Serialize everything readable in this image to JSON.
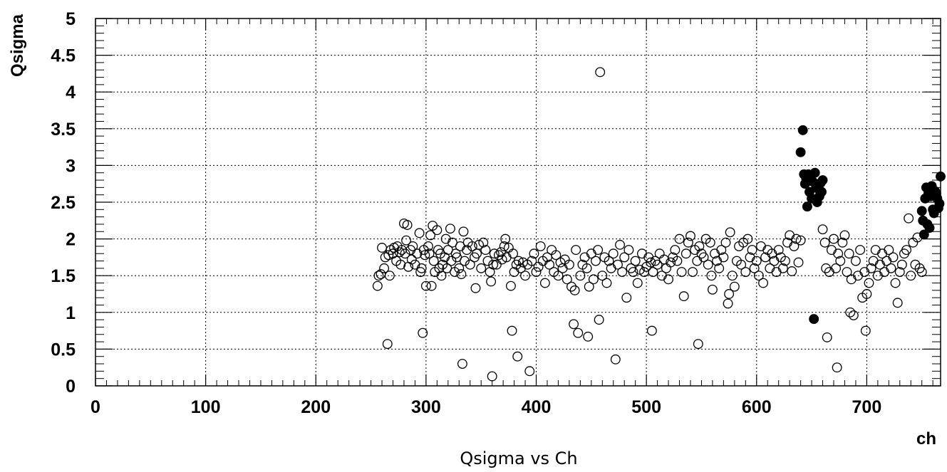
{
  "chart_data": {
    "type": "scatter",
    "caption": "Qsigma vs Ch",
    "xlabel": "ch",
    "ylabel": "Qsigma",
    "xlim": [
      0,
      767
    ],
    "ylim": [
      0,
      5
    ],
    "x_ticks": [
      0,
      100,
      200,
      300,
      400,
      500,
      600,
      700
    ],
    "x_tick_labels": [
      "0",
      "100",
      "200",
      "300",
      "400",
      "500",
      "600",
      "700"
    ],
    "y_ticks": [
      0,
      0.5,
      1,
      1.5,
      2,
      2.5,
      3,
      3.5,
      4,
      4.5,
      5
    ],
    "y_tick_labels": [
      "0",
      "0.5",
      "1",
      "1.5",
      "2",
      "2.5",
      "3",
      "3.5",
      "4",
      "4.5",
      "5"
    ],
    "grid": true,
    "series": [
      {
        "marker": "open-circle",
        "points": [
          [
            256,
            1.36
          ],
          [
            257,
            1.5
          ],
          [
            259,
            1.52
          ],
          [
            260,
            1.88
          ],
          [
            262,
            1.6
          ],
          [
            263,
            1.75
          ],
          [
            265,
            0.57
          ],
          [
            266,
            1.78
          ],
          [
            267,
            1.5
          ],
          [
            268,
            1.85
          ],
          [
            270,
            1.8
          ],
          [
            271,
            1.88
          ],
          [
            273,
            1.7
          ],
          [
            274,
            1.9
          ],
          [
            276,
            1.82
          ],
          [
            277,
            1.65
          ],
          [
            278,
            1.85
          ],
          [
            280,
            2.21
          ],
          [
            281,
            1.8
          ],
          [
            282,
            1.98
          ],
          [
            283,
            2.19
          ],
          [
            284,
            1.62
          ],
          [
            286,
            1.85
          ],
          [
            287,
            1.72
          ],
          [
            288,
            1.9
          ],
          [
            290,
            1.65
          ],
          [
            292,
            1.8
          ],
          [
            294,
            2.08
          ],
          [
            295,
            1.55
          ],
          [
            296,
            1.6
          ],
          [
            297,
            0.72
          ],
          [
            298,
            1.85
          ],
          [
            299,
            1.78
          ],
          [
            300,
            1.36
          ],
          [
            302,
            1.9
          ],
          [
            303,
            1.8
          ],
          [
            304,
            2.05
          ],
          [
            305,
            1.36
          ],
          [
            306,
            2.18
          ],
          [
            307,
            1.7
          ],
          [
            308,
            1.55
          ],
          [
            310,
            2.12
          ],
          [
            311,
            1.85
          ],
          [
            312,
            1.6
          ],
          [
            313,
            1.8
          ],
          [
            314,
            1.5
          ],
          [
            315,
            1.65
          ],
          [
            317,
            1.75
          ],
          [
            318,
            2.0
          ],
          [
            319,
            1.6
          ],
          [
            320,
            1.85
          ],
          [
            322,
            2.14
          ],
          [
            323,
            1.7
          ],
          [
            324,
            1.95
          ],
          [
            326,
            1.55
          ],
          [
            327,
            1.8
          ],
          [
            328,
            1.75
          ],
          [
            330,
            1.6
          ],
          [
            331,
            1.9
          ],
          [
            332,
            1.52
          ],
          [
            333,
            0.3
          ],
          [
            334,
            2.1
          ],
          [
            335,
            1.7
          ],
          [
            337,
            1.85
          ],
          [
            338,
            1.95
          ],
          [
            340,
            1.65
          ],
          [
            342,
            1.9
          ],
          [
            344,
            1.75
          ],
          [
            345,
            1.33
          ],
          [
            346,
            1.8
          ],
          [
            348,
            1.92
          ],
          [
            350,
            1.6
          ],
          [
            352,
            1.95
          ],
          [
            354,
            1.85
          ],
          [
            356,
            1.7
          ],
          [
            358,
            1.55
          ],
          [
            359,
            1.42
          ],
          [
            360,
            0.13
          ],
          [
            361,
            1.65
          ],
          [
            362,
            1.8
          ],
          [
            364,
            1.65
          ],
          [
            366,
            1.78
          ],
          [
            368,
            1.82
          ],
          [
            369,
            1.72
          ],
          [
            371,
            1.9
          ],
          [
            372,
            2.0
          ],
          [
            373,
            1.75
          ],
          [
            375,
            1.88
          ],
          [
            377,
            1.36
          ],
          [
            378,
            0.75
          ],
          [
            379,
            1.8
          ],
          [
            380,
            1.55
          ],
          [
            382,
            1.65
          ],
          [
            383,
            0.4
          ],
          [
            384,
            1.7
          ],
          [
            386,
            1.6
          ],
          [
            388,
            1.68
          ],
          [
            390,
            1.5
          ],
          [
            392,
            1.65
          ],
          [
            394,
            0.2
          ],
          [
            396,
            1.7
          ],
          [
            398,
            1.8
          ],
          [
            400,
            1.55
          ],
          [
            402,
            1.62
          ],
          [
            404,
            1.9
          ],
          [
            406,
            1.7
          ],
          [
            408,
            1.4
          ],
          [
            410,
            1.75
          ],
          [
            412,
            1.65
          ],
          [
            414,
            1.85
          ],
          [
            416,
            1.55
          ],
          [
            418,
            1.78
          ],
          [
            420,
            1.5
          ],
          [
            422,
            1.68
          ],
          [
            424,
            1.6
          ],
          [
            426,
            1.72
          ],
          [
            428,
            1.45
          ],
          [
            430,
            1.65
          ],
          [
            432,
            1.35
          ],
          [
            434,
            0.84
          ],
          [
            435,
            1.3
          ],
          [
            436,
            1.85
          ],
          [
            438,
            0.72
          ],
          [
            440,
            1.5
          ],
          [
            442,
            1.65
          ],
          [
            444,
            1.75
          ],
          [
            446,
            1.6
          ],
          [
            447,
            0.67
          ],
          [
            448,
            1.35
          ],
          [
            450,
            1.8
          ],
          [
            452,
            1.45
          ],
          [
            454,
            1.7
          ],
          [
            456,
            1.85
          ],
          [
            457,
            0.9
          ],
          [
            458,
            4.27
          ],
          [
            460,
            1.5
          ],
          [
            462,
            1.75
          ],
          [
            464,
            1.4
          ],
          [
            466,
            1.7
          ],
          [
            468,
            1.6
          ],
          [
            470,
            1.8
          ],
          [
            472,
            0.36
          ],
          [
            474,
            1.65
          ],
          [
            476,
            1.92
          ],
          [
            478,
            1.55
          ],
          [
            480,
            1.75
          ],
          [
            482,
            1.2
          ],
          [
            484,
            1.85
          ],
          [
            486,
            1.6
          ],
          [
            488,
            1.55
          ],
          [
            490,
            1.7
          ],
          [
            492,
            1.4
          ],
          [
            494,
            1.58
          ],
          [
            496,
            1.8
          ],
          [
            498,
            1.55
          ],
          [
            500,
            1.62
          ],
          [
            502,
            1.75
          ],
          [
            504,
            1.68
          ],
          [
            505,
            0.75
          ],
          [
            506,
            1.55
          ],
          [
            508,
            1.7
          ],
          [
            510,
            1.65
          ],
          [
            512,
            1.8
          ],
          [
            514,
            1.5
          ],
          [
            516,
            1.72
          ],
          [
            518,
            1.6
          ],
          [
            520,
            1.45
          ],
          [
            522,
            1.68
          ],
          [
            524,
            1.75
          ],
          [
            526,
            1.85
          ],
          [
            528,
            1.7
          ],
          [
            530,
            2.0
          ],
          [
            532,
            1.55
          ],
          [
            534,
            1.22
          ],
          [
            536,
            1.8
          ],
          [
            538,
            1.95
          ],
          [
            540,
            2.04
          ],
          [
            542,
            1.55
          ],
          [
            544,
            1.85
          ],
          [
            546,
            1.7
          ],
          [
            547,
            0.57
          ],
          [
            548,
            1.9
          ],
          [
            550,
            1.8
          ],
          [
            552,
            1.75
          ],
          [
            554,
            2.0
          ],
          [
            556,
            1.65
          ],
          [
            558,
            1.95
          ],
          [
            559,
            1.5
          ],
          [
            560,
            1.31
          ],
          [
            562,
            1.8
          ],
          [
            564,
            1.7
          ],
          [
            566,
            1.6
          ],
          [
            568,
            1.85
          ],
          [
            570,
            1.75
          ],
          [
            572,
            1.95
          ],
          [
            574,
            1.12
          ],
          [
            575,
            1.25
          ],
          [
            576,
            2.09
          ],
          [
            578,
            1.5
          ],
          [
            580,
            1.35
          ],
          [
            582,
            1.7
          ],
          [
            584,
            1.9
          ],
          [
            586,
            1.65
          ],
          [
            588,
            1.95
          ],
          [
            590,
            1.55
          ],
          [
            592,
            2.0
          ],
          [
            594,
            1.75
          ],
          [
            596,
            1.85
          ],
          [
            598,
            1.6
          ],
          [
            600,
            1.7
          ],
          [
            602,
            1.5
          ],
          [
            604,
            1.9
          ],
          [
            606,
            1.4
          ],
          [
            608,
            1.75
          ],
          [
            610,
            1.85
          ],
          [
            612,
            1.6
          ],
          [
            614,
            1.8
          ],
          [
            616,
            1.7
          ],
          [
            618,
            1.55
          ],
          [
            620,
            1.85
          ],
          [
            622,
            1.75
          ],
          [
            624,
            1.6
          ],
          [
            626,
            1.7
          ],
          [
            628,
            1.95
          ],
          [
            630,
            2.05
          ],
          [
            632,
            1.56
          ],
          [
            634,
            1.9
          ],
          [
            636,
            2.0
          ],
          [
            638,
            1.68
          ],
          [
            640,
            1.98
          ],
          [
            660,
            2.13
          ],
          [
            662,
            1.95
          ],
          [
            663,
            1.6
          ],
          [
            664,
            0.66
          ],
          [
            666,
            1.55
          ],
          [
            668,
            1.85
          ],
          [
            670,
            2.0
          ],
          [
            672,
            1.6
          ],
          [
            673,
            0.25
          ],
          [
            674,
            1.8
          ],
          [
            676,
            1.7
          ],
          [
            678,
            1.95
          ],
          [
            680,
            2.05
          ],
          [
            682,
            1.55
          ],
          [
            684,
            1.8
          ],
          [
            685,
            1.0
          ],
          [
            686,
            1.45
          ],
          [
            688,
            0.96
          ],
          [
            690,
            1.7
          ],
          [
            692,
            1.5
          ],
          [
            694,
            1.85
          ],
          [
            696,
            1.2
          ],
          [
            698,
            1.55
          ],
          [
            699,
            0.75
          ],
          [
            700,
            1.25
          ],
          [
            702,
            1.4
          ],
          [
            704,
            1.6
          ],
          [
            706,
            1.7
          ],
          [
            708,
            1.85
          ],
          [
            710,
            1.5
          ],
          [
            712,
            1.65
          ],
          [
            714,
            1.8
          ],
          [
            716,
            1.55
          ],
          [
            718,
            1.7
          ],
          [
            720,
            1.85
          ],
          [
            722,
            1.6
          ],
          [
            724,
            1.75
          ],
          [
            726,
            1.4
          ],
          [
            728,
            1.13
          ],
          [
            730,
            1.55
          ],
          [
            732,
            1.65
          ],
          [
            734,
            1.8
          ],
          [
            736,
            1.85
          ],
          [
            738,
            2.28
          ],
          [
            740,
            1.5
          ],
          [
            742,
            1.95
          ],
          [
            744,
            1.65
          ],
          [
            746,
            2.02
          ],
          [
            748,
            1.6
          ],
          [
            750,
            1.55
          ]
        ]
      },
      {
        "marker": "filled-circle",
        "points": [
          [
            640,
            3.18
          ],
          [
            642,
            3.48
          ],
          [
            643,
            2.88
          ],
          [
            644,
            2.75
          ],
          [
            645,
            2.82
          ],
          [
            646,
            2.44
          ],
          [
            647,
            2.88
          ],
          [
            648,
            2.64
          ],
          [
            649,
            2.85
          ],
          [
            650,
            2.55
          ],
          [
            651,
            2.78
          ],
          [
            652,
            0.91
          ],
          [
            653,
            2.9
          ],
          [
            654,
            2.7
          ],
          [
            655,
            2.5
          ],
          [
            656,
            2.68
          ],
          [
            657,
            2.58
          ],
          [
            658,
            2.76
          ],
          [
            659,
            2.64
          ],
          [
            660,
            2.8
          ],
          [
            750,
            2.38
          ],
          [
            751,
            2.25
          ],
          [
            752,
            2.06
          ],
          [
            753,
            2.55
          ],
          [
            754,
            2.7
          ],
          [
            755,
            2.2
          ],
          [
            756,
            2.62
          ],
          [
            757,
            2.15
          ],
          [
            758,
            2.58
          ],
          [
            759,
            2.72
          ],
          [
            760,
            2.4
          ],
          [
            761,
            2.35
          ],
          [
            762,
            2.65
          ],
          [
            763,
            2.62
          ],
          [
            764,
            2.55
          ],
          [
            765,
            2.42
          ],
          [
            766,
            2.48
          ],
          [
            767,
            2.85
          ]
        ]
      }
    ]
  }
}
